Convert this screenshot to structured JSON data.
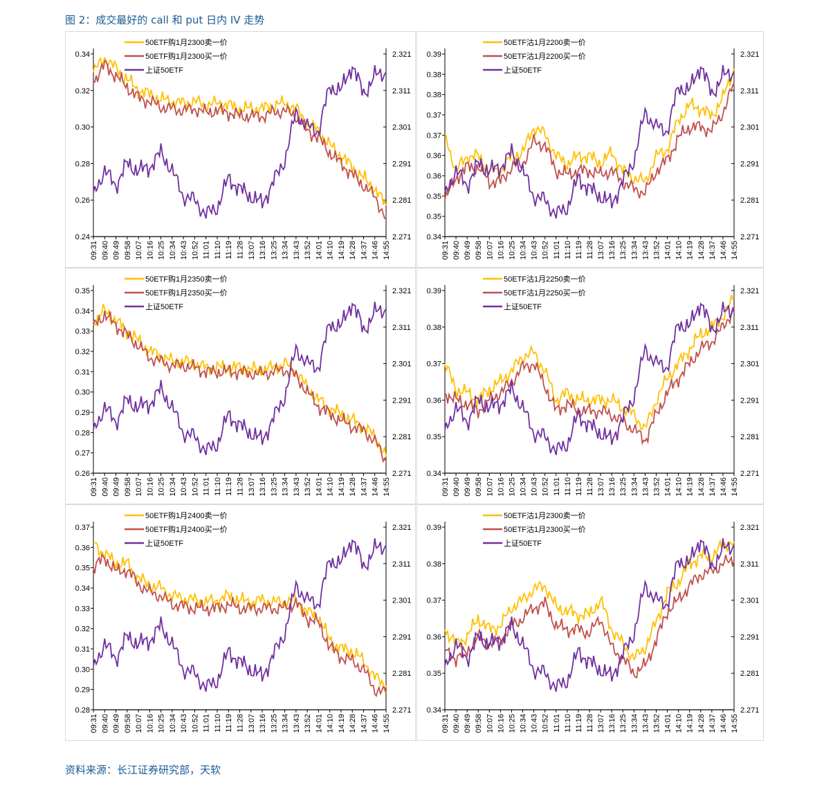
{
  "title": "图 2：成交最好的 call 和 put 日内 IV 走势",
  "source": "资料来源：长江证券研究部，天软",
  "colors": {
    "sell": "#FFC000",
    "buy": "#C0504D",
    "index": "#7030A0"
  },
  "chart_data": [
    {
      "type": "line",
      "legend": [
        "50ETF购1月2300卖一价",
        "50ETF购1月2300买一价",
        "上证50ETF"
      ],
      "ylim": [
        0.24,
        0.34
      ],
      "ytick_labels": [
        "0.24",
        "0.26",
        "0.28",
        "0.30",
        "0.32",
        "0.34"
      ],
      "y2lim": [
        2.271,
        2.321
      ],
      "sell": [
        0.33,
        0.338,
        0.332,
        0.326,
        0.32,
        0.318,
        0.315,
        0.314,
        0.313,
        0.314,
        0.312,
        0.313,
        0.312,
        0.31,
        0.31,
        0.31,
        0.312,
        0.313,
        0.31,
        0.302,
        0.298,
        0.29,
        0.284,
        0.278,
        0.272,
        0.266,
        0.257
      ],
      "buy": [
        0.325,
        0.334,
        0.328,
        0.322,
        0.316,
        0.314,
        0.311,
        0.31,
        0.309,
        0.31,
        0.308,
        0.309,
        0.308,
        0.306,
        0.306,
        0.306,
        0.308,
        0.309,
        0.306,
        0.298,
        0.294,
        0.286,
        0.28,
        0.274,
        0.268,
        0.262,
        0.25
      ]
    },
    {
      "type": "line",
      "legend": [
        "50ETF沽1月2200卖一价",
        "50ETF沽1月2200买一价",
        "上证50ETF"
      ],
      "ylim": [
        0.34,
        0.39
      ],
      "ytick_labels": [
        "0.34",
        "0.35",
        "0.35",
        "0.36",
        "0.36",
        "0.37",
        "0.37",
        "0.38",
        "0.38",
        "0.39"
      ],
      "y2lim": [
        2.271,
        2.321
      ],
      "sell": [
        0.368,
        0.358,
        0.362,
        0.362,
        0.358,
        0.358,
        0.362,
        0.363,
        0.37,
        0.368,
        0.362,
        0.36,
        0.362,
        0.362,
        0.36,
        0.363,
        0.358,
        0.356,
        0.355,
        0.362,
        0.364,
        0.372,
        0.376,
        0.375,
        0.373,
        0.378,
        0.386
      ],
      "buy": [
        0.35,
        0.356,
        0.359,
        0.359,
        0.355,
        0.355,
        0.359,
        0.36,
        0.366,
        0.365,
        0.358,
        0.357,
        0.358,
        0.358,
        0.357,
        0.358,
        0.355,
        0.353,
        0.352,
        0.358,
        0.361,
        0.367,
        0.37,
        0.37,
        0.369,
        0.374,
        0.382
      ]
    },
    {
      "type": "line",
      "legend": [
        "50ETF购1月2350卖一价",
        "50ETF购1月2350买一价",
        "上证50ETF"
      ],
      "ylim": [
        0.26,
        0.35
      ],
      "ytick_labels": [
        "0.26",
        "0.27",
        "0.28",
        "0.29",
        "0.30",
        "0.31",
        "0.32",
        "0.33",
        "0.34",
        "0.35"
      ],
      "y2lim": [
        2.271,
        2.321
      ],
      "sell": [
        0.335,
        0.34,
        0.335,
        0.33,
        0.325,
        0.32,
        0.318,
        0.315,
        0.315,
        0.314,
        0.312,
        0.312,
        0.312,
        0.312,
        0.311,
        0.311,
        0.312,
        0.314,
        0.31,
        0.302,
        0.296,
        0.292,
        0.289,
        0.286,
        0.283,
        0.278,
        0.268
      ],
      "buy": [
        0.333,
        0.338,
        0.333,
        0.328,
        0.323,
        0.317,
        0.315,
        0.313,
        0.313,
        0.312,
        0.31,
        0.31,
        0.31,
        0.31,
        0.309,
        0.309,
        0.31,
        0.311,
        0.308,
        0.3,
        0.293,
        0.289,
        0.286,
        0.283,
        0.281,
        0.276,
        0.266
      ]
    },
    {
      "type": "line",
      "legend": [
        "50ETF沽1月2250卖一价",
        "50ETF沽1月2250买一价",
        "上证50ETF"
      ],
      "ylim": [
        0.34,
        0.39
      ],
      "ytick_labels": [
        "0.34",
        "0.35",
        "0.36",
        "0.37",
        "0.38",
        "0.39"
      ],
      "y2lim": [
        2.271,
        2.321
      ],
      "sell": [
        0.37,
        0.363,
        0.362,
        0.36,
        0.363,
        0.365,
        0.368,
        0.372,
        0.373,
        0.368,
        0.36,
        0.362,
        0.36,
        0.36,
        0.36,
        0.36,
        0.358,
        0.356,
        0.352,
        0.36,
        0.366,
        0.37,
        0.374,
        0.378,
        0.38,
        0.383,
        0.388
      ],
      "buy": [
        0.362,
        0.36,
        0.359,
        0.357,
        0.36,
        0.362,
        0.365,
        0.369,
        0.37,
        0.364,
        0.357,
        0.359,
        0.357,
        0.357,
        0.357,
        0.356,
        0.354,
        0.352,
        0.349,
        0.356,
        0.362,
        0.366,
        0.37,
        0.374,
        0.376,
        0.38,
        0.385
      ]
    },
    {
      "type": "line",
      "legend": [
        "50ETF购1月2400卖一价",
        "50ETF购1月2400买一价",
        "上证50ETF"
      ],
      "ylim": [
        0.28,
        0.37
      ],
      "ytick_labels": [
        "0.28",
        "0.29",
        "0.30",
        "0.31",
        "0.32",
        "0.33",
        "0.34",
        "0.35",
        "0.36",
        "0.37"
      ],
      "y2lim": [
        2.271,
        2.321
      ],
      "sell": [
        0.362,
        0.357,
        0.352,
        0.352,
        0.345,
        0.341,
        0.34,
        0.336,
        0.335,
        0.334,
        0.333,
        0.334,
        0.336,
        0.334,
        0.333,
        0.334,
        0.333,
        0.333,
        0.334,
        0.328,
        0.326,
        0.314,
        0.31,
        0.309,
        0.304,
        0.296,
        0.292
      ],
      "buy": [
        0.35,
        0.355,
        0.348,
        0.349,
        0.342,
        0.338,
        0.336,
        0.332,
        0.331,
        0.33,
        0.33,
        0.33,
        0.332,
        0.33,
        0.33,
        0.33,
        0.33,
        0.33,
        0.333,
        0.325,
        0.323,
        0.311,
        0.306,
        0.304,
        0.3,
        0.29,
        0.288
      ]
    },
    {
      "type": "line",
      "legend": [
        "50ETF沽1月2300卖一价",
        "50ETF沽1月2300买一价",
        "上证50ETF"
      ],
      "ylim": [
        0.34,
        0.39
      ],
      "ytick_labels": [
        "0.34",
        "0.35",
        "0.36",
        "0.37",
        "0.38",
        "0.39"
      ],
      "y2lim": [
        2.271,
        2.321
      ],
      "sell": [
        0.362,
        0.358,
        0.36,
        0.365,
        0.362,
        0.363,
        0.368,
        0.37,
        0.373,
        0.374,
        0.368,
        0.367,
        0.366,
        0.366,
        0.37,
        0.362,
        0.358,
        0.354,
        0.357,
        0.364,
        0.372,
        0.375,
        0.38,
        0.382,
        0.382,
        0.385,
        0.386
      ],
      "buy": [
        0.356,
        0.354,
        0.356,
        0.36,
        0.358,
        0.359,
        0.363,
        0.365,
        0.368,
        0.369,
        0.363,
        0.362,
        0.362,
        0.361,
        0.365,
        0.357,
        0.354,
        0.35,
        0.352,
        0.359,
        0.367,
        0.37,
        0.374,
        0.377,
        0.378,
        0.38,
        0.381
      ]
    }
  ],
  "x_labels": [
    "09:31",
    "09:40",
    "09:49",
    "09:58",
    "10:07",
    "10:16",
    "10:25",
    "10:34",
    "10:43",
    "10:52",
    "11:01",
    "11:10",
    "11:19",
    "11:28",
    "13:07",
    "13:16",
    "13:25",
    "13:34",
    "13:43",
    "13:52",
    "14:01",
    "14:10",
    "14:19",
    "14:28",
    "14:37",
    "14:46",
    "14:55"
  ],
  "y2_tick_labels": [
    "2.271",
    "2.281",
    "2.291",
    "2.301",
    "2.311",
    "2.321"
  ],
  "index_values": [
    2.283,
    2.289,
    2.285,
    2.291,
    2.289,
    2.29,
    2.294,
    2.289,
    2.282,
    2.281,
    2.277,
    2.279,
    2.287,
    2.284,
    2.282,
    2.28,
    2.286,
    2.292,
    2.305,
    2.301,
    2.3,
    2.312,
    2.311,
    2.318,
    2.31,
    2.315,
    2.316
  ]
}
